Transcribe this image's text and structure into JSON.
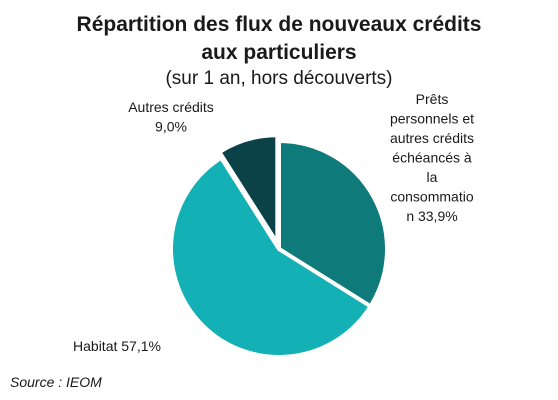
{
  "chart_data": {
    "type": "pie",
    "title_lines": [
      "Répartition des flux de nouveaux crédits",
      "aux particuliers"
    ],
    "subtitle": "(sur 1 an, hors découverts)",
    "start_angle_deg": 0,
    "direction": "clockwise",
    "legend": "none",
    "slices": [
      {
        "label_lines": [
          "Prêts",
          "personnels et",
          "autres crédits",
          "échéancés à",
          "la",
          "consommatio",
          "n 33,9%"
        ],
        "value": 33.9,
        "color": "#0f7a7a"
      },
      {
        "label_lines": [
          "Habitat 57,1%"
        ],
        "value": 57.1,
        "color": "#13b0b5"
      },
      {
        "label_lines": [
          "Autres crédits",
          "9,0%"
        ],
        "value": 9.0,
        "color": "#0b4247"
      }
    ]
  },
  "source": "Source : IEOM"
}
